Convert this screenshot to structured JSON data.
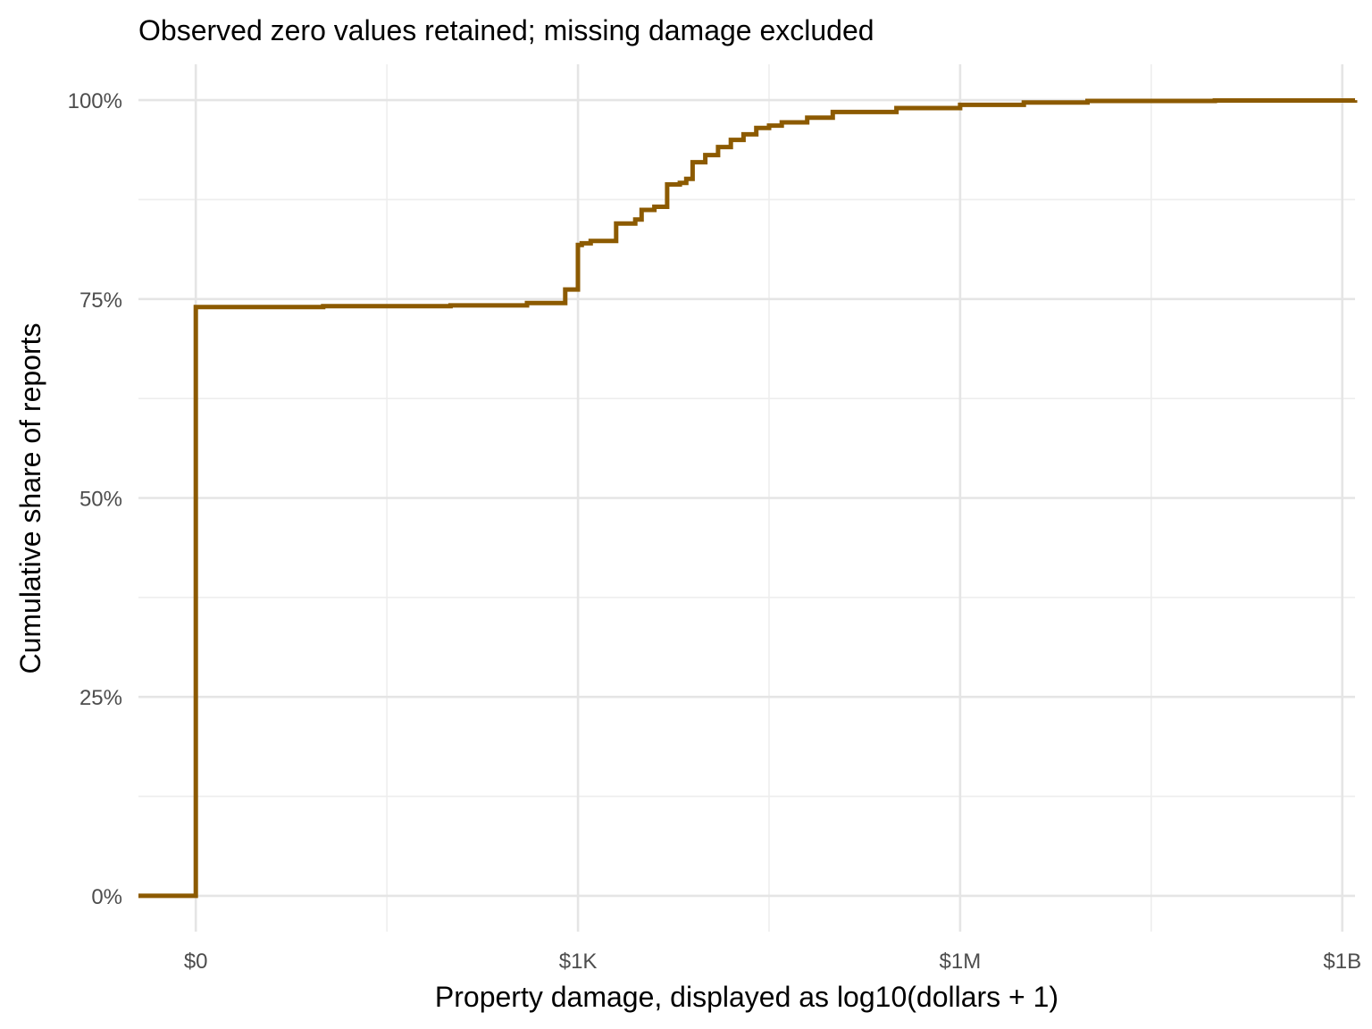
{
  "chart_data": {
    "type": "line",
    "subtitle": "Observed zero values retained; missing damage excluded",
    "xlabel": "Property damage, displayed as log10(dollars + 1)",
    "ylabel": "Cumulative share of reports",
    "x_scale": "log10(dollars + 1)",
    "x_ticks": [
      {
        "label": "$0",
        "value": 0
      },
      {
        "label": "$1K",
        "value": 1000
      },
      {
        "label": "$1M",
        "value": 1000000
      },
      {
        "label": "$1B",
        "value": 1000000000
      }
    ],
    "y_ticks": [
      {
        "label": "0%",
        "value": 0
      },
      {
        "label": "25%",
        "value": 0.25
      },
      {
        "label": "50%",
        "value": 0.5
      },
      {
        "label": "75%",
        "value": 0.75
      },
      {
        "label": "100%",
        "value": 1
      }
    ],
    "xlim_log10": [
      -0.45,
      9.1
    ],
    "ylim": [
      -0.045,
      1.045
    ],
    "grid": true,
    "legend": "none",
    "color": "#8c5a00",
    "series": [
      {
        "step": "hv",
        "x_log10": [
          -0.45,
          0,
          1,
          2,
          2.6,
          2.9,
          3.0,
          3.03,
          3.1,
          3.3,
          3.45,
          3.5,
          3.6,
          3.7,
          3.8,
          3.85,
          3.9,
          4.0,
          4.1,
          4.2,
          4.3,
          4.4,
          4.5,
          4.6,
          4.8,
          5.0,
          5.5,
          6.0,
          6.5,
          7.0,
          8.0,
          9.1
        ],
        "y": [
          0,
          0.74,
          0.741,
          0.742,
          0.745,
          0.762,
          0.818,
          0.82,
          0.823,
          0.845,
          0.85,
          0.862,
          0.866,
          0.894,
          0.896,
          0.901,
          0.922,
          0.931,
          0.941,
          0.95,
          0.957,
          0.965,
          0.968,
          0.972,
          0.978,
          0.985,
          0.99,
          0.994,
          0.997,
          0.999,
          0.9995,
          1.0
        ]
      }
    ]
  }
}
